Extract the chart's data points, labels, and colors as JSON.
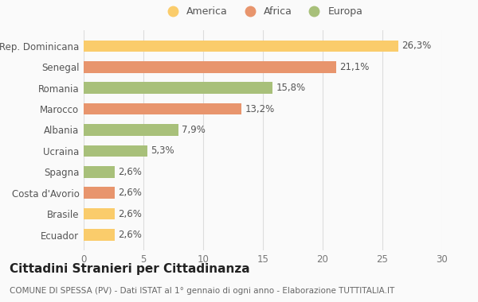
{
  "categories": [
    "Ecuador",
    "Brasile",
    "Costa d'Avorio",
    "Spagna",
    "Ucraina",
    "Albania",
    "Marocco",
    "Romania",
    "Senegal",
    "Rep. Dominicana"
  ],
  "values": [
    2.6,
    2.6,
    2.6,
    2.6,
    5.3,
    7.9,
    13.2,
    15.8,
    21.1,
    26.3
  ],
  "colors": [
    "#FACC6B",
    "#FACC6B",
    "#E8956D",
    "#A8C07A",
    "#A8C07A",
    "#A8C07A",
    "#E8956D",
    "#A8C07A",
    "#E8956D",
    "#FACC6B"
  ],
  "labels": [
    "2,6%",
    "2,6%",
    "2,6%",
    "2,6%",
    "5,3%",
    "7,9%",
    "13,2%",
    "15,8%",
    "21,1%",
    "26,3%"
  ],
  "title": "Cittadini Stranieri per Cittadinanza",
  "subtitle": "COMUNE DI SPESSA (PV) - Dati ISTAT al 1° gennaio di ogni anno - Elaborazione TUTTITALIA.IT",
  "xlim": [
    0,
    30
  ],
  "xticks": [
    0,
    5,
    10,
    15,
    20,
    25,
    30
  ],
  "legend_items": [
    {
      "label": "America",
      "color": "#FACC6B"
    },
    {
      "label": "Africa",
      "color": "#E8956D"
    },
    {
      "label": "Europa",
      "color": "#A8C07A"
    }
  ],
  "bg_color": "#FAFAFA",
  "bar_height": 0.55,
  "label_fontsize": 8.5,
  "tick_fontsize": 8.5,
  "title_fontsize": 11,
  "subtitle_fontsize": 7.5
}
